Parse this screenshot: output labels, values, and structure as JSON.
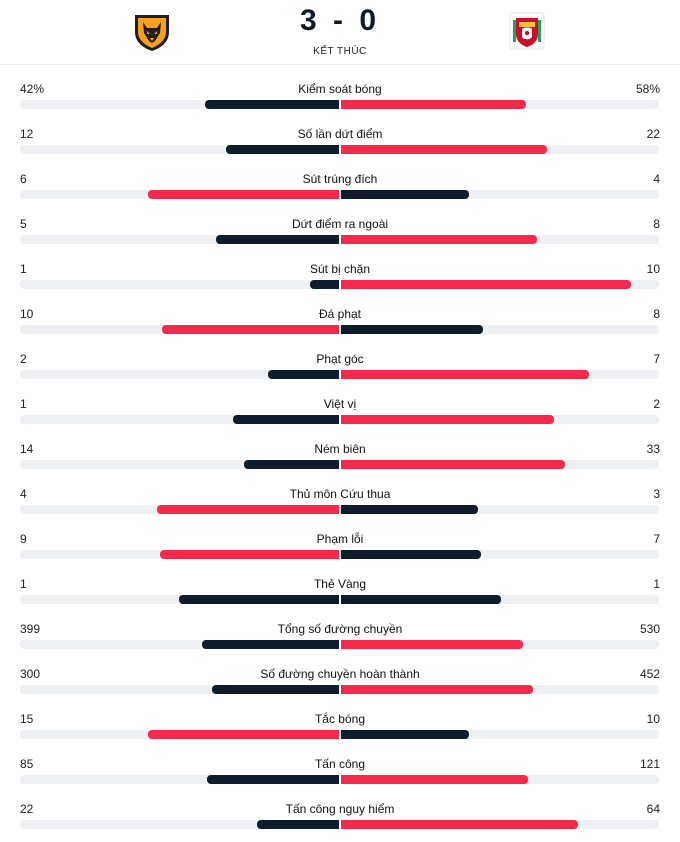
{
  "match": {
    "home_logo": "wolves-crest-icon",
    "away_logo": "liverpool-crest-icon",
    "score": "3 - 0",
    "status": "KẾT THÚC"
  },
  "colors": {
    "dark": "#0e1c2b",
    "red": "#f42a4c"
  },
  "stats": [
    {
      "label": "Kiểm soát bóng",
      "home": "42%",
      "away": "58%",
      "home_v": 42,
      "away_v": 58,
      "leader": "away"
    },
    {
      "label": "Số lần dứt điểm",
      "home": "12",
      "away": "22",
      "home_v": 12,
      "away_v": 22,
      "leader": "away"
    },
    {
      "label": "Sút trúng đích",
      "home": "6",
      "away": "4",
      "home_v": 6,
      "away_v": 4,
      "leader": "home"
    },
    {
      "label": "Dứt điểm ra ngoài",
      "home": "5",
      "away": "8",
      "home_v": 5,
      "away_v": 8,
      "leader": "away"
    },
    {
      "label": "Sút bị chặn",
      "home": "1",
      "away": "10",
      "home_v": 1,
      "away_v": 10,
      "leader": "away"
    },
    {
      "label": "Đá phạt",
      "home": "10",
      "away": "8",
      "home_v": 10,
      "away_v": 8,
      "leader": "home"
    },
    {
      "label": "Phạt góc",
      "home": "2",
      "away": "7",
      "home_v": 2,
      "away_v": 7,
      "leader": "away"
    },
    {
      "label": "Việt vị",
      "home": "1",
      "away": "2",
      "home_v": 1,
      "away_v": 2,
      "leader": "away"
    },
    {
      "label": "Ném biên",
      "home": "14",
      "away": "33",
      "home_v": 14,
      "away_v": 33,
      "leader": "away"
    },
    {
      "label": "Thủ môn Cứu thua",
      "home": "4",
      "away": "3",
      "home_v": 4,
      "away_v": 3,
      "leader": "home"
    },
    {
      "label": "Phạm lỗi",
      "home": "9",
      "away": "7",
      "home_v": 9,
      "away_v": 7,
      "leader": "home"
    },
    {
      "label": "Thẻ Vàng",
      "home": "1",
      "away": "1",
      "home_v": 1,
      "away_v": 1,
      "leader": "none"
    },
    {
      "label": "Tổng số đường chuyền",
      "home": "399",
      "away": "530",
      "home_v": 399,
      "away_v": 530,
      "leader": "away"
    },
    {
      "label": "Số đường chuyền hoàn thành",
      "home": "300",
      "away": "452",
      "home_v": 300,
      "away_v": 452,
      "leader": "away"
    },
    {
      "label": "Tắc bóng",
      "home": "15",
      "away": "10",
      "home_v": 15,
      "away_v": 10,
      "leader": "home"
    },
    {
      "label": "Tấn công",
      "home": "85",
      "away": "121",
      "home_v": 85,
      "away_v": 121,
      "leader": "away"
    },
    {
      "label": "Tấn công nguy hiểm",
      "home": "22",
      "away": "64",
      "home_v": 22,
      "away_v": 64,
      "leader": "away"
    }
  ]
}
